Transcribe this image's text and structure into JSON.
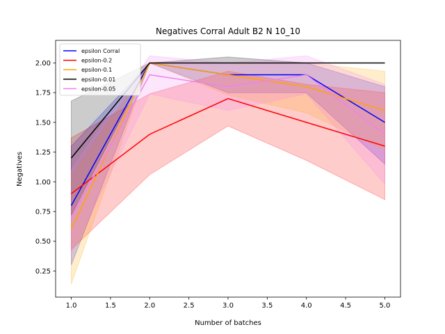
{
  "chart_data": {
    "type": "line",
    "title": "Negatives Corral Adult B2 N 10_10",
    "xlabel": "Number of batches",
    "ylabel": "Negatives",
    "xlim": [
      0.8,
      5.2
    ],
    "ylim": [
      0.03,
      2.19
    ],
    "xticks": [
      1.0,
      1.5,
      2.0,
      2.5,
      3.0,
      3.5,
      4.0,
      4.5,
      5.0
    ],
    "xtick_labels": [
      "1.0",
      "1.5",
      "2.0",
      "2.5",
      "3.0",
      "3.5",
      "4.0",
      "4.5",
      "5.0"
    ],
    "yticks": [
      0.25,
      0.5,
      0.75,
      1.0,
      1.25,
      1.5,
      1.75,
      2.0
    ],
    "ytick_labels": [
      "0.25",
      "0.50",
      "0.75",
      "1.00",
      "1.25",
      "1.50",
      "1.75",
      "2.00"
    ],
    "grid": false,
    "legend_position": "top-left",
    "x": [
      1,
      2,
      3,
      4,
      5
    ],
    "series": [
      {
        "name": "epsilon Corral",
        "color": "#0000ff",
        "values": [
          0.8,
          2.0,
          1.9,
          1.9,
          1.5
        ],
        "lower": [
          0.3,
          2.0,
          1.75,
          1.75,
          1.15
        ],
        "upper": [
          1.3,
          2.0,
          2.0,
          2.0,
          1.8
        ]
      },
      {
        "name": "epsilon-0.2",
        "color": "#ff0000",
        "values": [
          0.9,
          1.4,
          1.7,
          1.5,
          1.3
        ],
        "lower": [
          0.43,
          1.06,
          1.47,
          1.18,
          0.85
        ],
        "upper": [
          1.37,
          1.74,
          1.93,
          1.82,
          1.75
        ]
      },
      {
        "name": "epsilon-0.1",
        "color": "#ffa500",
        "values": [
          0.6,
          2.0,
          1.9,
          1.8,
          1.6
        ],
        "lower": [
          0.14,
          2.0,
          1.73,
          1.58,
          1.27
        ],
        "upper": [
          1.06,
          2.0,
          2.0,
          2.0,
          1.93
        ]
      },
      {
        "name": "epsilon-0.01",
        "color": "#000000",
        "values": [
          1.2,
          2.0,
          2.0,
          2.0,
          2.0
        ],
        "lower": [
          0.72,
          2.0,
          2.0,
          2.0,
          2.0
        ],
        "upper": [
          1.68,
          2.0,
          2.05,
          2.0,
          2.0
        ]
      },
      {
        "name": "epsilon-0.05",
        "color": "#ee82ee",
        "values": [
          0.7,
          1.9,
          1.8,
          1.9,
          1.4
        ],
        "lower": [
          0.4,
          1.74,
          1.6,
          1.74,
          0.98
        ],
        "upper": [
          1.1,
          2.06,
          2.0,
          2.06,
          1.82
        ]
      }
    ]
  }
}
